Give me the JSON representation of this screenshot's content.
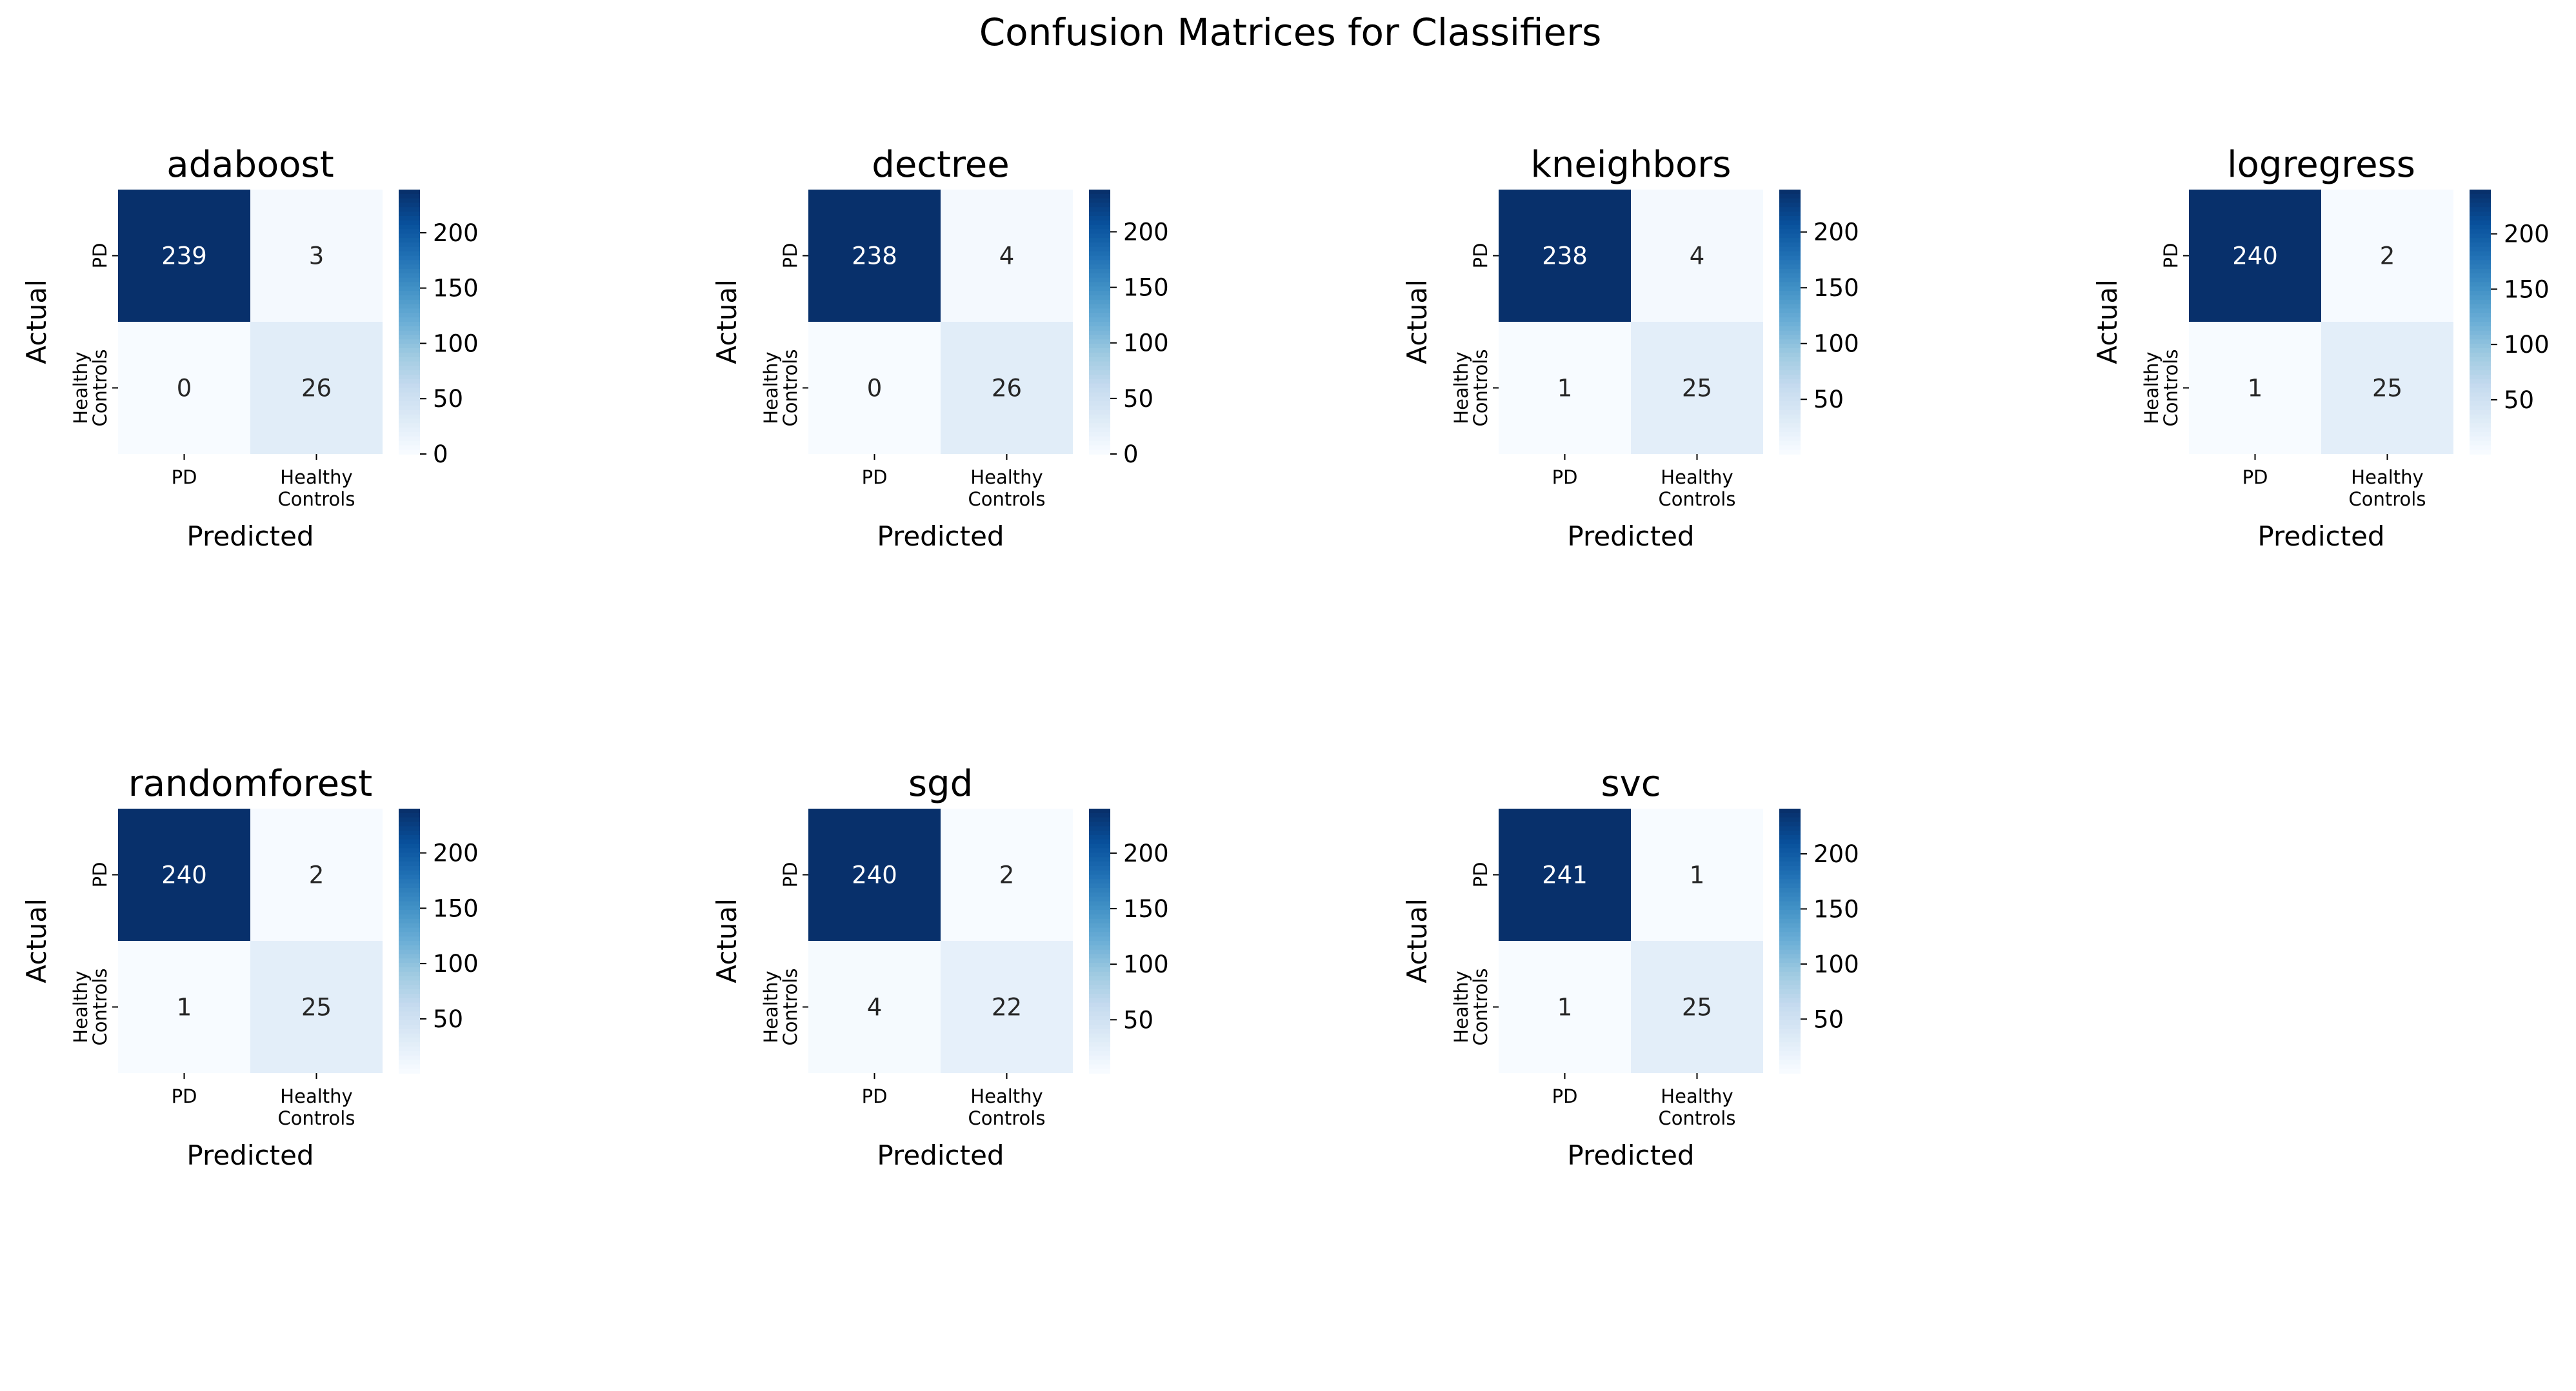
{
  "chart_data": {
    "suptitle": "Confusion Matrices for Classifiers",
    "colormap": "Blues",
    "colors": {
      "low": "#f7fbff",
      "high": "#08306b",
      "text_dark": "#262626",
      "text_light": "#ffffff"
    },
    "class_labels": [
      "PD",
      "Healthy\nControls"
    ],
    "panels": [
      {
        "type": "heatmap",
        "title": "adaboost",
        "xlabel": "Predicted",
        "ylabel": "Actual",
        "matrix": [
          [
            239,
            3
          ],
          [
            0,
            26
          ]
        ],
        "vmin": 0,
        "vmax": 239,
        "colorbar_ticks": [
          0,
          50,
          100,
          150,
          200
        ]
      },
      {
        "type": "heatmap",
        "title": "dectree",
        "xlabel": "Predicted",
        "ylabel": "Actual",
        "matrix": [
          [
            238,
            4
          ],
          [
            0,
            26
          ]
        ],
        "vmin": 0,
        "vmax": 238,
        "colorbar_ticks": [
          0,
          50,
          100,
          150,
          200
        ]
      },
      {
        "type": "heatmap",
        "title": "kneighbors",
        "xlabel": "Predicted",
        "ylabel": "Actual",
        "matrix": [
          [
            238,
            4
          ],
          [
            1,
            25
          ]
        ],
        "vmin": 1,
        "vmax": 238,
        "colorbar_ticks": [
          50,
          100,
          150,
          200
        ]
      },
      {
        "type": "heatmap",
        "title": "logregress",
        "xlabel": "Predicted",
        "ylabel": "Actual",
        "matrix": [
          [
            240,
            2
          ],
          [
            1,
            25
          ]
        ],
        "vmin": 1,
        "vmax": 240,
        "colorbar_ticks": [
          50,
          100,
          150,
          200
        ]
      },
      {
        "type": "heatmap",
        "title": "randomforest",
        "xlabel": "Predicted",
        "ylabel": "Actual",
        "matrix": [
          [
            240,
            2
          ],
          [
            1,
            25
          ]
        ],
        "vmin": 1,
        "vmax": 240,
        "colorbar_ticks": [
          50,
          100,
          150,
          200
        ]
      },
      {
        "type": "heatmap",
        "title": "sgd",
        "xlabel": "Predicted",
        "ylabel": "Actual",
        "matrix": [
          [
            240,
            2
          ],
          [
            4,
            22
          ]
        ],
        "vmin": 2,
        "vmax": 240,
        "colorbar_ticks": [
          50,
          100,
          150,
          200
        ]
      },
      {
        "type": "heatmap",
        "title": "svc",
        "xlabel": "Predicted",
        "ylabel": "Actual",
        "matrix": [
          [
            241,
            1
          ],
          [
            1,
            25
          ]
        ],
        "vmin": 1,
        "vmax": 241,
        "colorbar_ticks": [
          50,
          100,
          150,
          200
        ]
      }
    ]
  }
}
